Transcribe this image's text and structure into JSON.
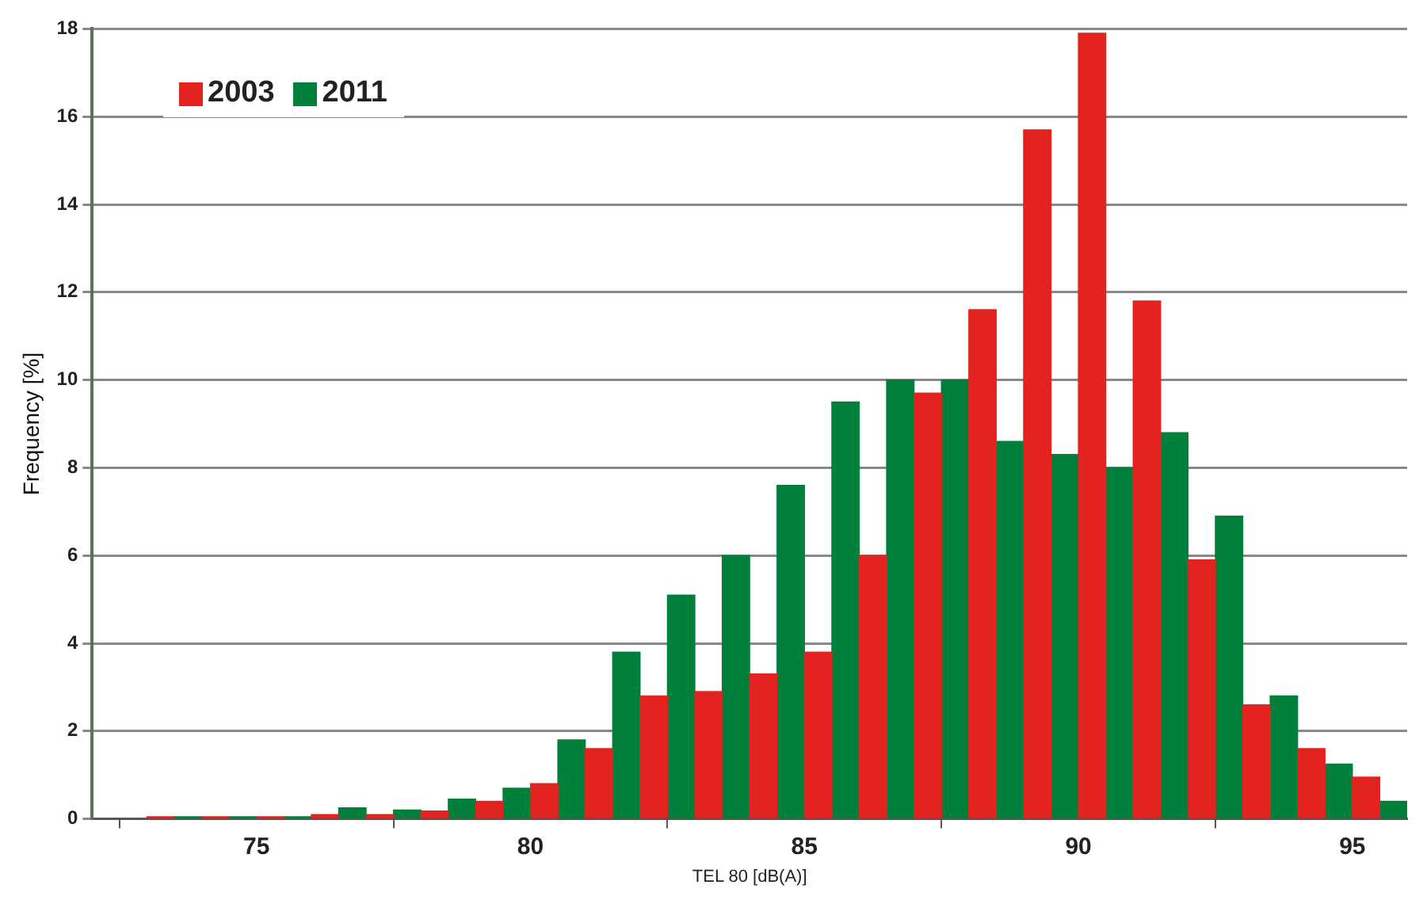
{
  "chart_data": {
    "type": "histogram",
    "xlabel": "TEL 80 [dB(A)]",
    "ylabel": "Frequency [%]",
    "bins": [
      73,
      74,
      75,
      76,
      77,
      78,
      79,
      80,
      81,
      82,
      83,
      84,
      85,
      86,
      87,
      88,
      89,
      90,
      91,
      92,
      93,
      94,
      95,
      96
    ],
    "series": [
      {
        "name": "2003",
        "color": "#e32320",
        "values": [
          0.05,
          0.05,
          0.05,
          0.1,
          0.1,
          0.18,
          0.4,
          0.8,
          1.6,
          2.8,
          2.9,
          3.3,
          3.8,
          6.0,
          9.7,
          11.6,
          15.7,
          17.9,
          11.8,
          5.9,
          2.6,
          1.6,
          0.95
        ]
      },
      {
        "name": "2011",
        "color": "#00803a",
        "values": [
          0.05,
          0.05,
          0.05,
          0.25,
          0.2,
          0.45,
          0.7,
          1.8,
          3.8,
          5.1,
          6.0,
          7.6,
          9.5,
          10.0,
          10.0,
          8.6,
          8.3,
          8.0,
          8.8,
          6.9,
          2.8,
          1.25,
          0.4
        ]
      }
    ],
    "xlim": [
      72,
      96
    ],
    "xticks": [
      75,
      80,
      85,
      90,
      95
    ],
    "ylim": [
      0,
      18
    ],
    "yticks": [
      0,
      2,
      4,
      6,
      8,
      10,
      12,
      14,
      16,
      18
    ],
    "grid": "y",
    "legend": "top left"
  }
}
